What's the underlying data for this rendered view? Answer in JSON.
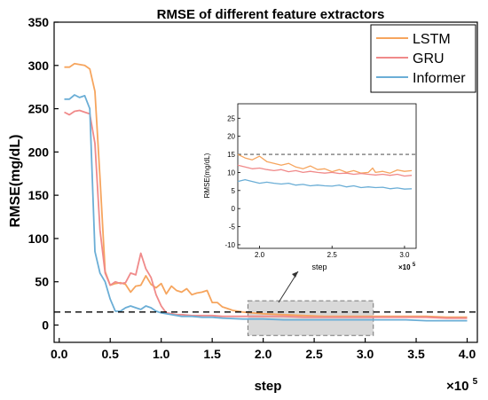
{
  "chart_data": {
    "type": "line",
    "title": "RMSE of different feature extractors",
    "xlabel": "step",
    "ylabel": "RMSE(mg/dL)",
    "x_multiplier_label": "×10",
    "x_multiplier_exp": "5",
    "xlim": [
      -0.05,
      4.1
    ],
    "ylim": [
      -20,
      350
    ],
    "xticks": [
      0.0,
      0.5,
      1.0,
      1.5,
      2.0,
      2.5,
      3.0,
      3.5,
      4.0
    ],
    "xtick_labels": [
      "0.0",
      "0.5",
      "1.0",
      "1.5",
      "2.0",
      "2.5",
      "3.0",
      "3.5",
      "4.0"
    ],
    "yticks": [
      0,
      50,
      100,
      150,
      200,
      250,
      300,
      350
    ],
    "ytick_labels": [
      "0",
      "50",
      "100",
      "150",
      "200",
      "250",
      "300",
      "350"
    ],
    "reference_line": 15,
    "legend_position": "top-right",
    "highlight_region": {
      "x": [
        1.85,
        3.08
      ],
      "y": [
        -12,
        28
      ]
    },
    "series": [
      {
        "name": "LSTM",
        "color": "#f6a55e",
        "x": [
          0.05,
          0.1,
          0.15,
          0.2,
          0.25,
          0.3,
          0.35,
          0.4,
          0.45,
          0.5,
          0.55,
          0.6,
          0.65,
          0.7,
          0.75,
          0.8,
          0.85,
          0.9,
          0.95,
          1.0,
          1.05,
          1.1,
          1.15,
          1.2,
          1.25,
          1.3,
          1.35,
          1.4,
          1.45,
          1.5,
          1.55,
          1.6,
          1.65,
          1.7,
          1.75,
          1.8,
          2.0,
          2.2,
          2.4,
          2.6,
          2.8,
          3.0,
          3.2,
          3.4,
          3.6,
          3.8,
          4.0
        ],
        "y": [
          298,
          298,
          302,
          301,
          300,
          296,
          270,
          170,
          62,
          46,
          48,
          49,
          47,
          38,
          45,
          46,
          57,
          47,
          43,
          48,
          36,
          45,
          40,
          38,
          42,
          35,
          37,
          38,
          40,
          26,
          26,
          21,
          19,
          17,
          16,
          15,
          13,
          12,
          11,
          10,
          10,
          10,
          10,
          10,
          10,
          9,
          9
        ]
      },
      {
        "name": "GRU",
        "color": "#f08a8a",
        "x": [
          0.05,
          0.1,
          0.15,
          0.2,
          0.25,
          0.3,
          0.35,
          0.4,
          0.45,
          0.5,
          0.55,
          0.6,
          0.65,
          0.7,
          0.75,
          0.8,
          0.85,
          0.9,
          0.95,
          1.0,
          1.05,
          1.1,
          1.15,
          1.2,
          1.3,
          1.4,
          1.5,
          1.6,
          1.7,
          1.8,
          2.0,
          2.2,
          2.4,
          2.6,
          2.8,
          3.0,
          3.2,
          3.4,
          3.6,
          3.8,
          4.0
        ],
        "y": [
          246,
          243,
          247,
          248,
          246,
          244,
          210,
          110,
          60,
          46,
          50,
          48,
          49,
          60,
          58,
          83,
          65,
          55,
          35,
          22,
          14,
          13,
          12,
          12,
          11,
          11,
          11,
          10,
          10,
          10,
          10,
          10,
          9,
          9,
          9,
          9,
          9,
          9,
          9,
          8,
          8
        ]
      },
      {
        "name": "Informer",
        "color": "#6baed6",
        "x": [
          0.05,
          0.1,
          0.15,
          0.2,
          0.25,
          0.3,
          0.35,
          0.4,
          0.45,
          0.5,
          0.55,
          0.6,
          0.65,
          0.7,
          0.75,
          0.8,
          0.85,
          0.9,
          0.95,
          1.0,
          1.1,
          1.2,
          1.3,
          1.4,
          1.5,
          1.6,
          1.8,
          2.0,
          2.2,
          2.4,
          2.6,
          2.8,
          3.0,
          3.2,
          3.4,
          3.6,
          3.8,
          4.0
        ],
        "y": [
          261,
          261,
          266,
          263,
          265,
          250,
          85,
          60,
          50,
          30,
          16,
          16,
          20,
          22,
          20,
          18,
          22,
          20,
          16,
          14,
          12,
          10,
          10,
          9,
          9,
          8,
          7,
          7,
          6,
          6,
          6,
          6,
          6,
          6,
          6,
          5,
          5,
          5
        ]
      }
    ],
    "inset": {
      "xlabel": "step",
      "ylabel": "RMSE(mg/dL)",
      "x_multiplier_label": "×10",
      "x_multiplier_exp": "5",
      "xlim": [
        1.85,
        3.08
      ],
      "ylim": [
        -11,
        29
      ],
      "xticks": [
        2.0,
        2.5,
        3.0
      ],
      "xtick_labels": [
        "2.0",
        "2.5",
        "3.0"
      ],
      "yticks": [
        -10,
        -5,
        0,
        5,
        10,
        15,
        20,
        25
      ],
      "ytick_labels": [
        "-10",
        "-5",
        "0",
        "5",
        "10",
        "15",
        "20",
        "25"
      ],
      "reference_line": 15,
      "series": [
        {
          "name": "LSTM",
          "color": "#f6a55e",
          "x": [
            1.85,
            1.9,
            1.95,
            2.0,
            2.05,
            2.1,
            2.15,
            2.2,
            2.25,
            2.3,
            2.35,
            2.4,
            2.45,
            2.5,
            2.55,
            2.6,
            2.65,
            2.7,
            2.75,
            2.78,
            2.8,
            2.85,
            2.9,
            2.95,
            3.0,
            3.05
          ],
          "y": [
            15.0,
            14.0,
            13.5,
            14.5,
            13.0,
            12.5,
            12.0,
            12.5,
            11.5,
            11.0,
            11.8,
            10.8,
            11.0,
            10.2,
            10.8,
            10.0,
            10.5,
            9.8,
            10.0,
            11.2,
            10.0,
            10.3,
            9.8,
            10.7,
            10.3,
            10.5
          ]
        },
        {
          "name": "GRU",
          "color": "#f08a8a",
          "x": [
            1.85,
            1.9,
            1.95,
            2.0,
            2.05,
            2.1,
            2.15,
            2.2,
            2.25,
            2.3,
            2.35,
            2.4,
            2.45,
            2.5,
            2.55,
            2.6,
            2.65,
            2.7,
            2.75,
            2.8,
            2.85,
            2.9,
            2.95,
            3.0,
            3.05
          ],
          "y": [
            12.0,
            11.5,
            11.0,
            11.2,
            10.8,
            10.5,
            10.8,
            10.2,
            10.5,
            10.0,
            10.3,
            10.0,
            9.8,
            10.0,
            9.7,
            9.8,
            9.5,
            9.7,
            9.5,
            9.3,
            9.5,
            9.2,
            9.5,
            9.0,
            9.2
          ]
        },
        {
          "name": "Informer",
          "color": "#6baed6",
          "x": [
            1.85,
            1.9,
            1.95,
            2.0,
            2.05,
            2.1,
            2.15,
            2.2,
            2.25,
            2.3,
            2.35,
            2.4,
            2.45,
            2.5,
            2.55,
            2.6,
            2.65,
            2.7,
            2.75,
            2.8,
            2.85,
            2.9,
            2.95,
            3.0,
            3.05
          ],
          "y": [
            7.5,
            8.0,
            7.5,
            7.0,
            7.3,
            7.0,
            6.8,
            7.0,
            6.5,
            6.7,
            6.3,
            6.5,
            6.3,
            6.2,
            6.5,
            6.0,
            6.3,
            5.8,
            6.0,
            5.8,
            5.9,
            5.5,
            5.7,
            5.4,
            5.5
          ]
        }
      ]
    }
  }
}
